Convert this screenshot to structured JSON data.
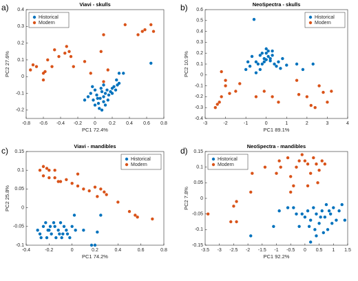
{
  "chart_data": [
    {
      "type": "scatter",
      "panel_label": "a)",
      "title": "Viavi - skulls",
      "x_label": "PC1 72.4%",
      "y_label": "PC2 27.6%",
      "legend": "northwest",
      "xlim": [
        -0.8,
        0.8
      ],
      "xticks": [
        -0.8,
        -0.6,
        -0.4,
        -0.2,
        0,
        0.2,
        0.4,
        0.6,
        0.8
      ],
      "ylim": [
        -0.25,
        0.4
      ],
      "yticks": [
        -0.2,
        -0.1,
        0,
        0.1,
        0.2,
        0.3,
        0.4
      ],
      "series": [
        {
          "name": "Historical",
          "color": "#0072bd",
          "x": [
            -0.08,
            -0.05,
            -0.02,
            0,
            0.02,
            0.04,
            0.06,
            0.08,
            0.1,
            0.12,
            0.14,
            0.16,
            0.18,
            0.2,
            0.22,
            0.24,
            0.26,
            0.28,
            0,
            0.05,
            0.1,
            0.15,
            0.2,
            -0.03,
            0.08,
            0.12,
            0.03,
            0.07,
            -0.12,
            0.28,
            0.33,
            0.25,
            0.65,
            0.1
          ],
          "values": [
            -0.12,
            -0.1,
            -0.14,
            -0.08,
            -0.11,
            -0.16,
            -0.13,
            -0.09,
            -0.12,
            -0.1,
            -0.08,
            -0.11,
            -0.09,
            -0.07,
            -0.06,
            -0.08,
            -0.05,
            -0.04,
            -0.17,
            -0.19,
            -0.15,
            -0.14,
            -0.1,
            -0.06,
            -0.2,
            -0.17,
            -0.13,
            -0.07,
            -0.14,
            0.02,
            0.02,
            -0.02,
            0.08,
            -0.05
          ]
        },
        {
          "name": "Modern",
          "color": "#d95319",
          "x": [
            -0.75,
            -0.72,
            -0.68,
            -0.6,
            -0.58,
            -0.55,
            -0.5,
            -0.47,
            -0.42,
            -0.35,
            -0.33,
            -0.3,
            -0.28,
            -0.12,
            -0.25,
            -0.05,
            0.07,
            0.1,
            0.15,
            0.1,
            0.35,
            0.5,
            0.55,
            0.58,
            0.65,
            0.68,
            -0.6
          ],
          "values": [
            0.04,
            0.07,
            0.06,
            0.02,
            0.03,
            0.1,
            0.06,
            0.16,
            0.12,
            0.14,
            0.18,
            0.15,
            0.12,
            0.09,
            0.06,
            0.02,
            0.15,
            0.25,
            0.04,
            -0.03,
            0.31,
            0.25,
            0.27,
            0.28,
            0.31,
            0.27,
            -0.02
          ]
        }
      ]
    },
    {
      "type": "scatter",
      "panel_label": "b)",
      "title": "NeoSpectra - skulls",
      "x_label": "PC1 89.1%",
      "y_label": "PC2 10.9%",
      "legend": "northeast",
      "xlim": [
        -3,
        4
      ],
      "xticks": [
        -3,
        -2,
        -1,
        0,
        1,
        2,
        3,
        4
      ],
      "ylim": [
        -0.4,
        0.6
      ],
      "yticks": [
        -0.4,
        -0.3,
        -0.2,
        -0.1,
        0,
        0.1,
        0.2,
        0.3,
        0.4,
        0.5,
        0.6
      ],
      "series": [
        {
          "name": "Historical",
          "color": "#0072bd",
          "x": [
            -0.6,
            -1,
            -0.9,
            -0.8,
            -0.7,
            -0.5,
            -0.4,
            -0.3,
            -0.2,
            -0.1,
            0,
            0.1,
            0.2,
            0.3,
            0.4,
            0.5,
            0.6,
            0.8,
            1,
            -0.3,
            0,
            0.2,
            -0.1,
            0.1,
            -0.5,
            0.3,
            0,
            -0.2,
            1.5,
            1.8,
            2.3,
            0.7
          ],
          "values": [
            0.51,
            0.05,
            0.12,
            0.08,
            0.17,
            0.12,
            0.1,
            0.18,
            0.2,
            0.15,
            0.24,
            0.22,
            0.13,
            0.18,
            0.1,
            0.08,
            0.12,
            0.15,
            0.09,
            0.05,
            0.2,
            0.15,
            0.12,
            0.17,
            0.02,
            0.22,
            0.14,
            0.1,
            0.1,
            0.05,
            0.1,
            0.06
          ]
        },
        {
          "name": "Modern",
          "color": "#d95319",
          "x": [
            -2.5,
            -2.3,
            -2.2,
            -2,
            -2,
            -2.2,
            -1.8,
            -1.5,
            -1.3,
            -0.5,
            -0.1,
            0.3,
            1.5,
            1.6,
            2,
            2.4,
            2.6,
            2.8,
            3,
            3.2,
            2.2,
            -2.4,
            0.6
          ],
          "values": [
            -0.3,
            -0.25,
            -0.2,
            -0.1,
            -0.05,
            0.03,
            -0.17,
            -0.15,
            -0.08,
            -0.2,
            -0.15,
            -0.2,
            -0.05,
            -0.18,
            -0.2,
            -0.3,
            -0.1,
            -0.16,
            -0.25,
            -0.15,
            -0.28,
            -0.27,
            -0.25
          ]
        }
      ]
    },
    {
      "type": "scatter",
      "panel_label": "c)",
      "title": "Viavi - mandibles",
      "x_label": "PC1 74.2%",
      "y_label": "PC2 25.8%",
      "legend": "northeast",
      "xlim": [
        -0.4,
        0.8
      ],
      "xticks": [
        -0.4,
        -0.2,
        0,
        0.2,
        0.4,
        0.6,
        0.8
      ],
      "ylim": [
        -0.1,
        0.15
      ],
      "yticks": [
        -0.1,
        -0.05,
        0,
        0.05,
        0.1,
        0.15
      ],
      "series": [
        {
          "name": "Historical",
          "color": "#0072bd",
          "x": [
            -0.3,
            -0.28,
            -0.25,
            -0.22,
            -0.2,
            -0.18,
            -0.15,
            -0.12,
            -0.1,
            -0.08,
            -0.05,
            -0.02,
            0,
            0.03,
            -0.27,
            -0.23,
            -0.19,
            -0.14,
            -0.11,
            -0.07,
            -0.04,
            -0.21,
            -0.16,
            -0.09,
            0.17,
            0.2,
            0.22,
            0.25,
            0.1,
            0.02
          ],
          "values": [
            -0.06,
            -0.07,
            -0.05,
            -0.08,
            -0.06,
            -0.07,
            -0.05,
            -0.06,
            -0.04,
            -0.07,
            -0.06,
            -0.08,
            -0.05,
            -0.06,
            -0.08,
            -0.04,
            -0.05,
            -0.08,
            -0.07,
            -0.05,
            -0.07,
            -0.06,
            -0.04,
            -0.08,
            -0.1,
            -0.1,
            -0.065,
            -0.02,
            -0.06,
            -0.02
          ]
        },
        {
          "name": "Modern",
          "color": "#d95319",
          "x": [
            -0.28,
            -0.25,
            -0.2,
            -0.15,
            -0.25,
            -0.2,
            -0.15,
            -0.12,
            -0.1,
            -0.05,
            0,
            0.05,
            0.1,
            0.15,
            0.2,
            0.25,
            0.28,
            0.22,
            0.3,
            0.4,
            0.5,
            0.55,
            0.57,
            0.7,
            0.05,
            -0.22
          ],
          "values": [
            0.1,
            0.11,
            0.1,
            0.1,
            0.085,
            0.08,
            0.08,
            0.07,
            0.07,
            0.075,
            0.065,
            0.058,
            0.05,
            0.045,
            0.055,
            0.05,
            0.042,
            0.03,
            0.035,
            0.015,
            -0.01,
            -0.02,
            -0.025,
            -0.03,
            0.09,
            0.105
          ]
        }
      ]
    },
    {
      "type": "scatter",
      "panel_label": "d)",
      "title": "NeoSpectra - mandibles",
      "x_label": "PC1 92.2%",
      "y_label": "PC2 7.8%",
      "legend": "northwest",
      "xlim": [
        -3.5,
        1.5
      ],
      "xticks": [
        -3.5,
        -3,
        -2.5,
        -2,
        -1.5,
        -1,
        -0.5,
        0,
        0.5,
        1,
        1.5
      ],
      "ylim": [
        -0.15,
        0.15
      ],
      "yticks": [
        -0.15,
        -0.1,
        -0.05,
        0,
        0.05,
        0.1,
        0.15
      ],
      "series": [
        {
          "name": "Historical",
          "color": "#0072bd",
          "x": [
            -1.9,
            -1.1,
            -0.9,
            -0.6,
            -0.4,
            -0.3,
            -0.2,
            -0.1,
            0,
            0.1,
            0.2,
            0.3,
            0.4,
            0.5,
            0.6,
            0.7,
            0.8,
            0.9,
            1,
            1.1,
            1.2,
            1.3,
            0.15,
            0.35,
            0.55,
            0.75,
            0.95,
            0.2,
            0.4,
            1.4,
            0.65,
            0.85
          ],
          "values": [
            -0.12,
            -0.09,
            -0.04,
            -0.03,
            -0.03,
            -0.05,
            -0.09,
            -0.05,
            -0.06,
            -0.04,
            -0.07,
            -0.03,
            -0.05,
            -0.08,
            -0.04,
            -0.06,
            -0.1,
            -0.05,
            -0.03,
            -0.07,
            -0.04,
            -0.02,
            -0.09,
            -0.1,
            -0.06,
            -0.02,
            -0.08,
            -0.14,
            -0.12,
            -0.07,
            -0.11,
            -0.04
          ]
        },
        {
          "name": "Modern",
          "color": "#d95319",
          "x": [
            -3.4,
            -2.6,
            -2.4,
            -2.5,
            -2.4,
            -1.9,
            -1.85,
            -1.4,
            -1,
            -0.9,
            -0.85,
            -0.6,
            -0.5,
            -0.3,
            -0.2,
            -0.1,
            0,
            0.1,
            0.2,
            0.3,
            0.4,
            0.5,
            0.6,
            0.7,
            0.45,
            -0.4,
            0.1,
            -0.5
          ],
          "values": [
            -0.05,
            -0.075,
            -0.075,
            -0.025,
            -0.01,
            0.02,
            0.08,
            0.1,
            0.08,
            0.12,
            0.1,
            0.13,
            0.07,
            0.1,
            0.12,
            0.14,
            0.12,
            0.11,
            0.08,
            0.13,
            0.11,
            0.09,
            0.12,
            0.11,
            0.05,
            0.04,
            0.04,
            0.02
          ]
        }
      ]
    }
  ]
}
